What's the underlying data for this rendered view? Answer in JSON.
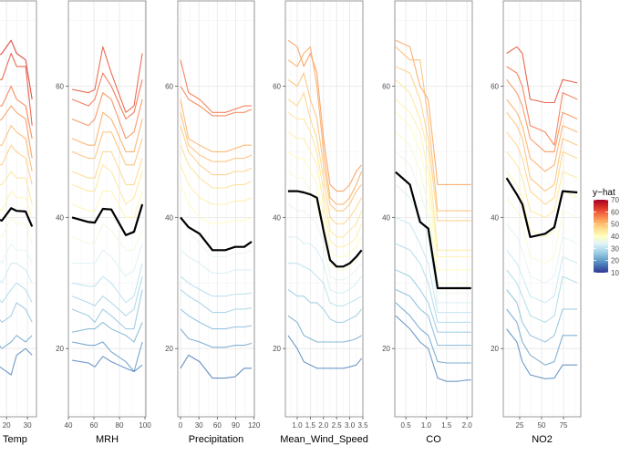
{
  "chart_data": {
    "type": "line",
    "subtype": "ICE plot",
    "ylim": [
      9.6,
      73
    ],
    "yticks": [
      20,
      40,
      60
    ],
    "grid": true,
    "legend": {
      "title": "y−hat",
      "placement": "right",
      "range": [
        10,
        70
      ],
      "ticks": [
        10,
        20,
        30,
        40,
        50,
        60,
        70
      ],
      "colormap": [
        "#313695",
        "#4575b4",
        "#74add1",
        "#abd9e9",
        "#e0f3f8",
        "#ffffbf",
        "#fee090",
        "#fdae61",
        "#f46d43",
        "#d73027",
        "#a50026"
      ]
    },
    "average_line_color": "#000000",
    "panels": [
      {
        "xlabel": "Temp",
        "xlim": [
          -2.7,
          34.3
        ],
        "xticks": [
          20,
          30
        ],
        "x": [
          -1,
          4,
          9,
          13,
          17.8,
          22.2,
          24.8,
          29.1,
          32.2
        ],
        "average": [
          40,
          40,
          40,
          40,
          39.5,
          41.4,
          41,
          40.9,
          38.6
        ],
        "curves": [
          [
            63,
            64,
            63,
            64,
            65,
            67,
            65,
            64,
            58
          ],
          [
            60,
            61,
            60,
            61,
            61,
            65,
            63,
            63,
            54
          ],
          [
            57,
            57,
            56,
            57,
            57,
            60,
            58,
            57,
            52
          ],
          [
            54,
            54,
            53,
            54,
            55,
            57,
            56,
            55,
            49
          ],
          [
            51,
            51,
            50,
            51,
            51,
            54,
            53,
            52,
            47
          ],
          [
            48,
            48,
            47,
            48,
            48,
            51,
            50,
            49,
            45
          ],
          [
            45,
            45,
            44,
            45,
            45,
            47,
            46,
            46,
            42
          ],
          [
            42,
            42,
            41,
            42,
            41,
            44,
            43,
            43,
            40
          ],
          [
            38,
            38,
            37,
            38,
            37,
            40,
            39,
            39,
            36
          ],
          [
            35,
            35,
            34,
            35,
            33,
            36,
            35,
            35,
            33
          ],
          [
            32,
            32,
            31,
            32,
            30,
            33,
            33,
            32,
            30
          ],
          [
            29,
            29,
            28,
            29,
            27,
            29,
            30,
            29,
            27
          ],
          [
            26,
            26,
            25,
            26,
            24,
            25,
            27,
            26,
            24
          ],
          [
            22,
            22,
            21,
            22,
            20,
            21,
            22,
            21,
            22
          ],
          [
            18,
            18,
            17,
            18,
            17,
            16,
            19,
            20,
            19
          ]
        ]
      },
      {
        "xlabel": "MRH",
        "xlim": [
          40,
          100.7
        ],
        "xticks": [
          40,
          60,
          80,
          100
        ],
        "x": [
          42.9,
          55.7,
          60.7,
          67,
          73.6,
          85,
          91.4,
          97.9
        ],
        "average": [
          40,
          39.3,
          39.2,
          41.3,
          41.2,
          37.3,
          37.8,
          42
        ],
        "curves": [
          [
            59.5,
            59,
            59.5,
            66,
            62,
            56,
            57,
            65
          ],
          [
            58,
            57,
            58,
            62,
            60,
            55,
            56,
            61
          ],
          [
            55,
            54,
            55,
            59,
            58,
            52,
            53,
            58
          ],
          [
            52,
            51,
            51,
            56,
            55,
            50,
            50,
            55
          ],
          [
            50,
            49,
            49,
            53,
            53,
            48,
            48,
            52
          ],
          [
            47,
            46,
            46,
            50,
            50,
            45,
            45,
            49
          ],
          [
            45,
            44,
            44,
            48,
            47,
            42,
            43,
            47
          ],
          [
            42,
            41,
            41,
            44,
            44,
            40,
            40,
            44
          ],
          [
            37,
            36,
            36,
            39,
            38,
            35,
            35,
            38
          ],
          [
            33,
            33,
            33,
            35,
            34,
            31,
            32,
            36
          ],
          [
            30,
            29.5,
            29.5,
            31,
            30,
            27,
            28,
            33
          ],
          [
            28,
            27,
            26.5,
            28,
            27,
            25,
            26,
            31
          ],
          [
            26,
            25,
            24,
            26,
            25,
            23,
            23,
            29
          ],
          [
            22.5,
            23,
            23,
            24,
            23,
            22,
            21,
            24
          ],
          [
            21,
            20.5,
            20.5,
            21,
            19.5,
            18,
            16.5,
            21
          ],
          [
            18.2,
            17.8,
            17.2,
            18.8,
            18,
            17,
            16.5,
            17.5
          ]
        ]
      },
      {
        "xlabel": "Precipitation",
        "xlim": [
          -4.5,
          120.5
        ],
        "xticks": [
          0,
          30,
          60,
          90,
          120
        ],
        "x": [
          0,
          13,
          31,
          52,
          73,
          89,
          104,
          116
        ],
        "average": [
          40,
          38.5,
          37.5,
          35,
          35,
          35.5,
          35.5,
          36.3
        ],
        "curves": [
          [
            64,
            59,
            58,
            56,
            56,
            56.5,
            57,
            57
          ],
          [
            60,
            58,
            57,
            55.5,
            55.5,
            56,
            56,
            56.5
          ],
          [
            58,
            52,
            51,
            50,
            50,
            50.5,
            51,
            51
          ],
          [
            56,
            51,
            49.5,
            48.5,
            48.5,
            49,
            49,
            49.5
          ],
          [
            54,
            50,
            48,
            46.5,
            46.5,
            47,
            47,
            47.5
          ],
          [
            51,
            48,
            46,
            44.5,
            44.5,
            45,
            45,
            45.5
          ],
          [
            48,
            45,
            43,
            42,
            42,
            42.5,
            42.5,
            43
          ],
          [
            45,
            42,
            40,
            39,
            39.2,
            39.5,
            39.5,
            40
          ],
          [
            40,
            38,
            36,
            34,
            34,
            34.5,
            34.5,
            35
          ],
          [
            35,
            34,
            33,
            31.5,
            31.5,
            32,
            32,
            32
          ],
          [
            31,
            30,
            29,
            28,
            28,
            28.3,
            28.3,
            28.5
          ],
          [
            29,
            28,
            27,
            25.5,
            25.5,
            26,
            26,
            26.2
          ],
          [
            26,
            25,
            24,
            23,
            23,
            23.3,
            23.3,
            23.5
          ],
          [
            23,
            21.5,
            21,
            20.2,
            20.2,
            20.5,
            20.5,
            20.8
          ],
          [
            17,
            19,
            18,
            15.5,
            15.5,
            15.7,
            17,
            17
          ]
        ]
      },
      {
        "xlabel": "Mean_Wind_Speed",
        "xlim": [
          0.55,
          3.5
        ],
        "xticks": [
          1.0,
          1.5,
          2.0,
          2.5,
          3.0,
          3.5
        ],
        "x": [
          0.65,
          1.0,
          1.25,
          1.5,
          1.75,
          2.0,
          2.25,
          2.5,
          2.75,
          3.0,
          3.25,
          3.45
        ],
        "average": [
          44,
          44,
          43.8,
          43.5,
          43,
          38,
          33.5,
          32.5,
          32.5,
          33,
          34,
          35
        ],
        "curves": [
          [
            67,
            66,
            63,
            65,
            62,
            52,
            45,
            44,
            44,
            45,
            47,
            48
          ],
          [
            64,
            63,
            65,
            66,
            60,
            50,
            43,
            42,
            42,
            43,
            45,
            47
          ],
          [
            61,
            60,
            62,
            58,
            55,
            48,
            42,
            41,
            41,
            42,
            44,
            45
          ],
          [
            58,
            57,
            59,
            55,
            52,
            46,
            40,
            39,
            39,
            40,
            41.5,
            43
          ],
          [
            56,
            55,
            55,
            53,
            50,
            44,
            38,
            37,
            37,
            38,
            39,
            41
          ],
          [
            53,
            52,
            52,
            50,
            48,
            42,
            36.5,
            35.5,
            35.5,
            36,
            37,
            39
          ],
          [
            50,
            49,
            49,
            47,
            45,
            40,
            35,
            34,
            34,
            34.5,
            35.5,
            37
          ],
          [
            47,
            46,
            46,
            44,
            42,
            38,
            33,
            32,
            32,
            32.5,
            33.5,
            35
          ],
          [
            42,
            41,
            41,
            40,
            39,
            36,
            31,
            30.5,
            30.5,
            31,
            32,
            33
          ],
          [
            37,
            37,
            36,
            36,
            35,
            33,
            29,
            28.5,
            28.5,
            29,
            30,
            31
          ],
          [
            33,
            33,
            32.5,
            32,
            31,
            30,
            27,
            26.5,
            26.5,
            27,
            27.5,
            28
          ],
          [
            29,
            28,
            28,
            27,
            27,
            26,
            24.5,
            24,
            24,
            24.5,
            25,
            26
          ],
          [
            25,
            24,
            22,
            21.5,
            21,
            21,
            21,
            21,
            21,
            21.2,
            21.5,
            22
          ],
          [
            22,
            20,
            18,
            17.5,
            17,
            17,
            17,
            17,
            17,
            17.2,
            17.5,
            18.5
          ]
        ]
      },
      {
        "xlabel": "CO",
        "xlim": [
          0.23,
          2.13
        ],
        "xticks": [
          0.5,
          1.0,
          1.5,
          2.0
        ],
        "x": [
          0.25,
          0.6,
          0.85,
          1.05,
          1.28,
          1.5,
          1.75,
          2.0,
          2.1
        ],
        "average": [
          46.9,
          45,
          39.3,
          38.3,
          29.2,
          29.2,
          29.2,
          29.2,
          29.2
        ],
        "curves": [
          [
            67,
            66,
            60,
            58,
            45,
            45,
            45,
            45,
            45
          ],
          [
            66,
            64,
            64,
            55,
            41,
            41,
            41,
            41,
            41
          ],
          [
            63,
            62,
            58,
            52,
            39.5,
            39.5,
            39.5,
            39.5,
            39.5
          ],
          [
            61,
            59,
            55,
            50,
            35,
            35,
            35,
            35,
            35
          ],
          [
            58,
            56,
            53,
            47,
            34,
            34,
            34,
            34,
            34
          ],
          [
            56,
            54,
            50,
            45,
            32,
            32,
            32,
            32,
            32
          ],
          [
            53,
            51,
            47,
            42,
            30,
            30,
            30,
            30,
            30
          ],
          [
            50,
            48,
            44,
            40,
            28.5,
            28.5,
            28.5,
            28.5,
            28.5
          ],
          [
            45,
            43,
            40,
            37,
            27,
            27,
            27,
            27,
            27
          ],
          [
            40,
            39,
            36,
            33,
            25.5,
            25.5,
            25.5,
            25.5,
            25.5
          ],
          [
            36,
            35,
            33,
            30,
            24,
            24,
            24,
            24,
            24
          ],
          [
            32,
            31,
            29,
            27,
            22.5,
            22.5,
            22.5,
            22.5,
            22.5
          ],
          [
            29,
            28,
            26,
            25,
            20.5,
            20.5,
            20.5,
            20.5,
            20.5
          ],
          [
            27,
            25,
            23,
            22,
            18,
            17.8,
            17.8,
            17.8,
            17.8
          ],
          [
            25,
            23,
            21,
            20,
            15.5,
            15,
            15,
            15.2,
            15.2
          ]
        ]
      },
      {
        "xlabel": "NO2",
        "xlim": [
          6.3,
          94.7
        ],
        "xticks": [
          25,
          50,
          75
        ],
        "x": [
          10,
          21.8,
          28,
          37,
          54,
          64.5,
          74,
          90.7
        ],
        "average": [
          46,
          43.5,
          42,
          37,
          37.5,
          38.5,
          44,
          43.8
        ],
        "curves": [
          [
            65,
            66,
            65,
            58,
            57.5,
            57.5,
            61,
            60.5
          ],
          [
            63,
            62,
            60,
            54,
            53,
            51,
            59,
            58
          ],
          [
            61,
            59,
            57,
            52,
            50,
            50,
            56,
            55
          ],
          [
            58,
            56,
            54,
            49,
            47,
            48,
            54,
            53
          ],
          [
            56,
            54,
            52,
            46,
            44,
            45,
            52,
            51
          ],
          [
            53,
            51,
            49,
            44,
            42,
            43,
            50,
            49
          ],
          [
            50,
            48,
            46,
            41,
            40,
            41,
            47,
            46
          ],
          [
            47,
            45,
            43,
            38,
            37,
            38,
            44,
            43
          ],
          [
            43,
            41,
            39,
            34,
            33,
            34,
            41,
            40
          ],
          [
            39,
            37,
            35,
            31,
            30,
            31,
            37,
            36
          ],
          [
            35,
            33,
            31,
            28,
            27,
            28,
            34,
            33
          ],
          [
            32,
            30,
            28,
            25,
            24,
            25,
            31,
            30
          ],
          [
            29,
            27,
            24,
            22,
            21,
            22,
            26,
            26
          ],
          [
            26,
            24,
            21,
            19,
            17.5,
            18,
            22,
            22
          ],
          [
            23,
            21,
            18,
            16,
            15.4,
            15.5,
            17.5,
            17.5
          ]
        ]
      }
    ]
  }
}
